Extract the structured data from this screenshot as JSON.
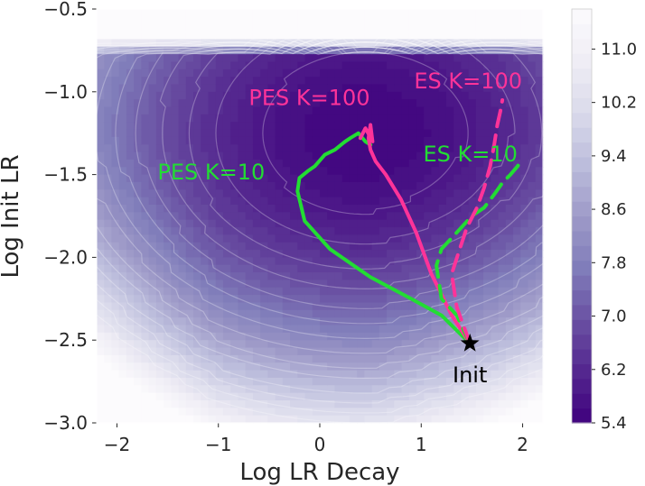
{
  "chart_data": {
    "type": "contour",
    "xlabel": "Log LR Decay",
    "ylabel": "Log Init LR",
    "xlim": [
      -2.2,
      2.2
    ],
    "ylim": [
      -3.0,
      -0.5
    ],
    "x_ticks": [
      -2,
      -1,
      0,
      1,
      2
    ],
    "x_tick_labels": [
      "−2",
      "−1",
      "0",
      "1",
      "2"
    ],
    "y_ticks": [
      -3.0,
      -2.5,
      -2.0,
      -1.5,
      -1.0,
      -0.5
    ],
    "y_tick_labels": [
      "−3.0",
      "−2.5",
      "−2.0",
      "−1.5",
      "−1.0",
      "−0.5"
    ],
    "grid": false,
    "colorbar": {
      "min": 5.4,
      "max": 11.6,
      "ticks": [
        5.4,
        6.2,
        7.0,
        7.8,
        8.6,
        9.4,
        10.2,
        11.0
      ],
      "tick_labels": [
        "5.4",
        "6.2",
        "7.0",
        "7.8",
        "8.6",
        "9.4",
        "10.2",
        "11.0"
      ],
      "colors": [
        "#3f007d",
        "#54278f",
        "#6a51a3",
        "#807dba",
        "#9e9ac8",
        "#bcbddc",
        "#dadaeb",
        "#efedf5",
        "#fcfbfd"
      ]
    },
    "surface": {
      "min_at": [
        0.45,
        -1.25
      ],
      "min_value": 5.5,
      "cliff_at_y": -0.72,
      "cliff_value": 11.6
    },
    "init_marker": {
      "x": 1.48,
      "y": -2.52,
      "label": "Init",
      "color": "#000000"
    },
    "series": [
      {
        "name": "PES K=10",
        "color": "#22dd33",
        "dash": false,
        "label_at": [
          -1.6,
          -1.53
        ],
        "x": [
          1.48,
          1.2,
          0.9,
          0.5,
          0.1,
          -0.15,
          -0.22,
          -0.2,
          -0.12,
          -0.05,
          0.05,
          0.15,
          0.25,
          0.3,
          0.38,
          0.45,
          0.5
        ],
        "y": [
          -2.52,
          -2.35,
          -2.25,
          -2.12,
          -1.95,
          -1.78,
          -1.6,
          -1.52,
          -1.48,
          -1.45,
          -1.38,
          -1.35,
          -1.3,
          -1.28,
          -1.25,
          -1.3,
          -1.32
        ]
      },
      {
        "name": "PES K=100",
        "color": "#ff3399",
        "dash": false,
        "label_at": [
          -0.7,
          -1.08
        ],
        "x": [
          1.48,
          1.3,
          1.1,
          0.95,
          0.8,
          0.65,
          0.55,
          0.5,
          0.48,
          0.5,
          0.52,
          0.45,
          0.4
        ],
        "y": [
          -2.52,
          -2.35,
          -2.1,
          -1.85,
          -1.65,
          -1.5,
          -1.42,
          -1.35,
          -1.28,
          -1.2,
          -1.3,
          -1.22,
          -1.28
        ]
      },
      {
        "name": "ES K=10",
        "color": "#22dd33",
        "dash": true,
        "label_at": [
          1.02,
          -1.42
        ],
        "x": [
          1.48,
          1.35,
          1.2,
          1.15,
          1.2,
          1.35,
          1.5,
          1.62,
          1.72,
          1.8,
          1.88,
          1.95,
          2.0
        ],
        "y": [
          -2.52,
          -2.35,
          -2.25,
          -2.05,
          -1.95,
          -1.85,
          -1.75,
          -1.7,
          -1.62,
          -1.55,
          -1.5,
          -1.45,
          -1.4
        ]
      },
      {
        "name": "ES K=100",
        "color": "#ff3399",
        "dash": true,
        "label_at": [
          0.93,
          -0.98
        ],
        "x": [
          1.48,
          1.35,
          1.3,
          1.38,
          1.45,
          1.55,
          1.62,
          1.68,
          1.72,
          1.75,
          1.78,
          1.8
        ],
        "y": [
          -2.52,
          -2.3,
          -2.1,
          -1.95,
          -1.82,
          -1.7,
          -1.58,
          -1.45,
          -1.32,
          -1.2,
          -1.12,
          -1.05
        ]
      }
    ]
  }
}
